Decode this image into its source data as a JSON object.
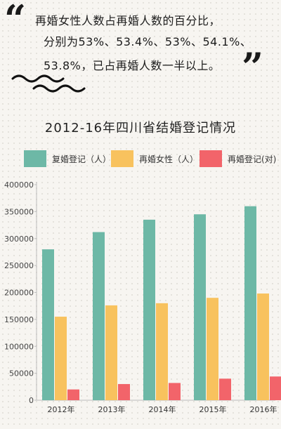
{
  "quote": {
    "open_mark": "“",
    "close_mark": "”",
    "lines": [
      "再婚女性人数占再婚人数的百分比，",
      "分别为53%、53.4%、53%、54.1%、",
      "53.8%，已占再婚人数一半以上。"
    ]
  },
  "chart_data": {
    "type": "bar",
    "title": "2012-16年四川省结婚登记情况",
    "categories": [
      "2012年",
      "2013年",
      "2014年",
      "2015年",
      "2016年"
    ],
    "series": [
      {
        "name": "复婚登记（人）",
        "color": "#6db8a6",
        "values": [
          280000,
          312000,
          335000,
          345000,
          360000
        ]
      },
      {
        "name": "再婚女性（人）",
        "color": "#f8c25e",
        "values": [
          155000,
          176000,
          180000,
          190000,
          198000
        ]
      },
      {
        "name": "再婚登记(对)",
        "color": "#f2646a",
        "values": [
          20000,
          30000,
          32000,
          40000,
          44000
        ]
      }
    ],
    "ylim": [
      0,
      400000
    ],
    "yticks": [
      "0",
      "50000",
      "100000",
      "150000",
      "200000",
      "250000",
      "300000",
      "350000",
      "400000"
    ],
    "grid": false,
    "legend": "top"
  }
}
